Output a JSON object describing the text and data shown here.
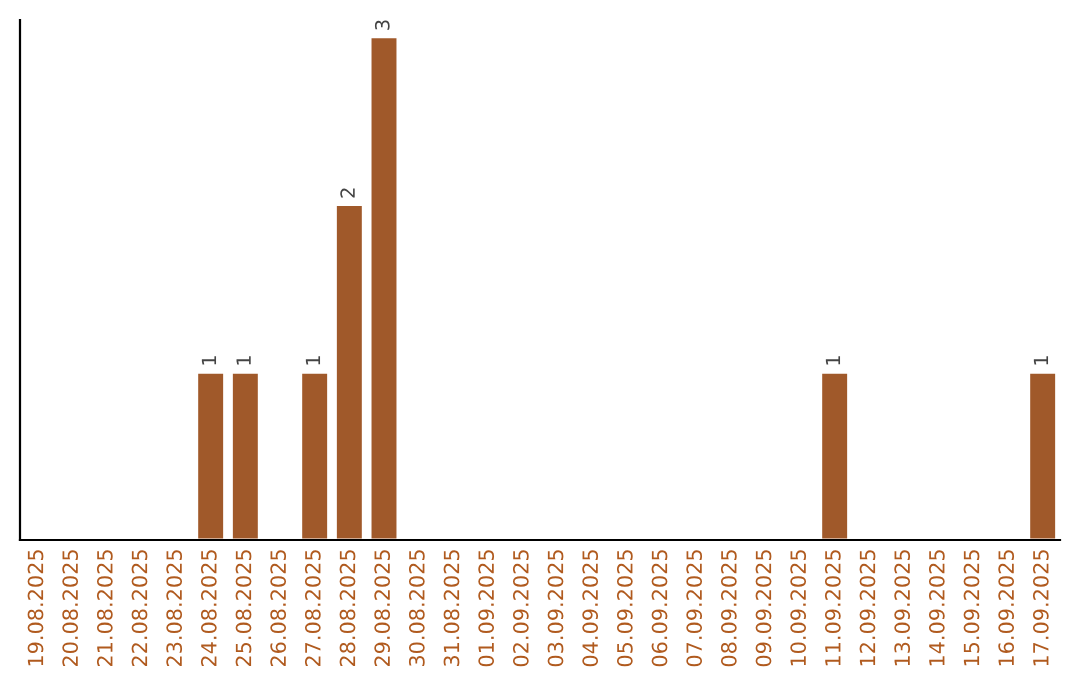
{
  "chart_data": {
    "type": "bar",
    "categories": [
      "19.08.2025",
      "20.08.2025",
      "21.08.2025",
      "22.08.2025",
      "23.08.2025",
      "24.08.2025",
      "25.08.2025",
      "26.08.2025",
      "27.08.2025",
      "28.08.2025",
      "29.08.2025",
      "30.08.2025",
      "31.08.2025",
      "01.09.2025",
      "02.09.2025",
      "03.09.2025",
      "04.09.2025",
      "05.09.2025",
      "06.09.2025",
      "07.09.2025",
      "08.09.2025",
      "09.09.2025",
      "10.09.2025",
      "11.09.2025",
      "12.09.2025",
      "13.09.2025",
      "14.09.2025",
      "15.09.2025",
      "16.09.2025",
      "17.09.2025"
    ],
    "values": [
      null,
      null,
      null,
      null,
      null,
      1,
      1,
      null,
      1,
      2,
      3,
      null,
      null,
      null,
      null,
      null,
      null,
      null,
      null,
      null,
      null,
      null,
      null,
      1,
      null,
      null,
      null,
      null,
      null,
      1
    ],
    "color": "#a0592a",
    "ylim": [
      0,
      3.1
    ],
    "data_labels": true,
    "tick_labels": "x",
    "grid": false
  }
}
